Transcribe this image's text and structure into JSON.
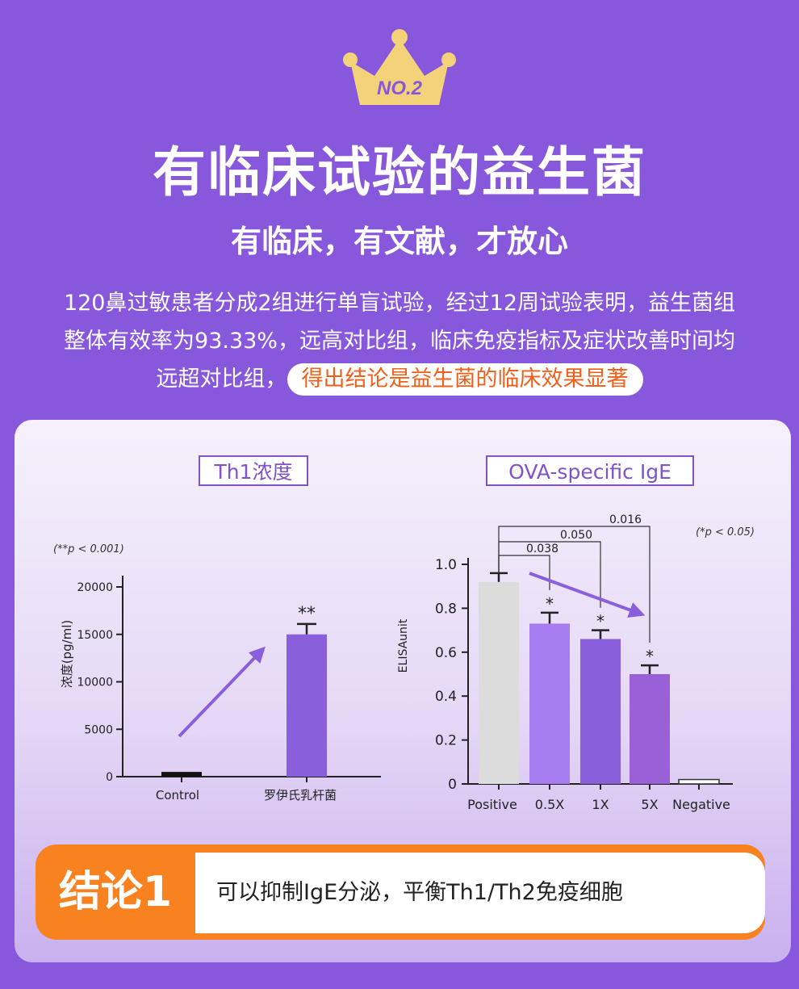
{
  "badge": "NO.2",
  "title": "有临床试验的益生菌",
  "subtitle": "有临床，有文献，才放心",
  "description": {
    "line1": "120鼻过敏患者分成2组进行单盲试验，经过12周试验表明，益生菌组",
    "line2": "整体有效率为93.33%，远高对比组，临床免疫指标及症状改善时间均",
    "line3_plain": "远超对比组，",
    "line3_highlight": "得出结论是益生菌的临床效果显著"
  },
  "chart_data": [
    {
      "type": "bar",
      "title": "Th1浓度",
      "note": "(**p < 0.001)",
      "ylabel": "浓度(pg/ml)",
      "ylim": [
        0,
        20000
      ],
      "yticks": [
        "0",
        "5000",
        "10000",
        "15000",
        "20000"
      ],
      "categories": [
        "Control",
        "罗伊氏乳杆菌"
      ],
      "values": [
        500,
        15000
      ],
      "error": [
        0,
        1100
      ],
      "significance": [
        "",
        "**"
      ],
      "colors": [
        "#111111",
        "#8a5fdc"
      ]
    },
    {
      "type": "bar",
      "title": "OVA-specific IgE",
      "note": "(*p < 0.05)",
      "ylabel": "ELISAunit",
      "ylim": [
        0,
        1.0
      ],
      "yticks": [
        "0",
        "0.2",
        "0.4",
        "0.6",
        "0.8",
        "1.0"
      ],
      "categories": [
        "Positive",
        "0.5X",
        "1X",
        "5X",
        "Negative"
      ],
      "values": [
        0.92,
        0.73,
        0.66,
        0.5,
        0.02
      ],
      "error": [
        0.04,
        0.05,
        0.04,
        0.04,
        0
      ],
      "significance": [
        "",
        "*",
        "*",
        "*",
        ""
      ],
      "pvalues": [
        "0.038",
        "0.050",
        "0.016"
      ],
      "colors": [
        "#dcdcdc",
        "#a77cf0",
        "#8a5fdc",
        "#9a60d8",
        "#ffffff"
      ]
    }
  ],
  "conclusion": {
    "label": "结论1",
    "text": "可以抑制IgE分泌，平衡Th1/Th2免疫细胞"
  }
}
